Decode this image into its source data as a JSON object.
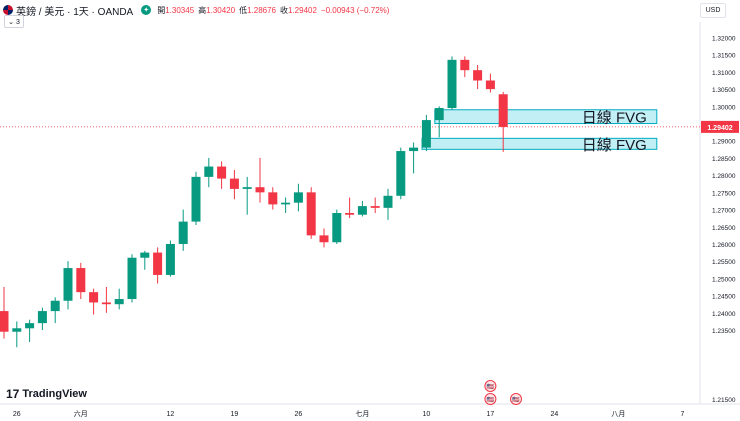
{
  "header": {
    "symbol": "英鎊 / 美元 · 1天 · OANDA",
    "status_glyph": "✦",
    "ohlc_text": [
      {
        "label": "開",
        "value": "1.30345"
      },
      {
        "label": "高",
        "value": "1.30420"
      },
      {
        "label": "低",
        "value": "1.28676"
      },
      {
        "label": "收",
        "value": "1.29402"
      },
      {
        "label": "",
        "value": "−0.00943 (−0.72%)"
      }
    ],
    "collapse_label": "⌄ 3",
    "currency": "USD"
  },
  "logo": {
    "text": "TradingView",
    "mark": "17"
  },
  "colors": {
    "up": "#089981",
    "down": "#f23645",
    "fvg_fill": "#b2ebf2",
    "fvg_border": "#00acc1",
    "price_line": "#f23645"
  },
  "chart_data": {
    "type": "candlestick",
    "instrument": "GBP/USD",
    "timeframe": "1D",
    "ylim": [
      1.2135,
      1.3245
    ],
    "y_ticks": [
      "1.32000",
      "1.31500",
      "1.31000",
      "1.30500",
      "1.30000",
      "1.29500",
      "1.29000",
      "1.28500",
      "1.28000",
      "1.27500",
      "1.27000",
      "1.26500",
      "1.26000",
      "1.25500",
      "1.25000",
      "1.24500",
      "1.24000",
      "1.23500",
      "1.21500"
    ],
    "x_ticks": [
      {
        "label": "26",
        "index": 1
      },
      {
        "label": "六月",
        "index": 6
      },
      {
        "label": "12",
        "index": 13
      },
      {
        "label": "19",
        "index": 18
      },
      {
        "label": "26",
        "index": 23
      },
      {
        "label": "七月",
        "index": 28
      },
      {
        "label": "10",
        "index": 33
      },
      {
        "label": "17",
        "index": 38
      },
      {
        "label": "24",
        "index": 43
      },
      {
        "label": "八月",
        "index": 48
      },
      {
        "label": "7",
        "index": 53
      }
    ],
    "candles": [
      {
        "o": 1.2405,
        "h": 1.2475,
        "l": 1.2325,
        "c": 1.2345
      },
      {
        "o": 1.2345,
        "h": 1.2375,
        "l": 1.23,
        "c": 1.2355
      },
      {
        "o": 1.2355,
        "h": 1.238,
        "l": 1.2315,
        "c": 1.237
      },
      {
        "o": 1.237,
        "h": 1.2415,
        "l": 1.235,
        "c": 1.2405
      },
      {
        "o": 1.2405,
        "h": 1.2445,
        "l": 1.237,
        "c": 1.2435
      },
      {
        "o": 1.2435,
        "h": 1.255,
        "l": 1.241,
        "c": 1.253
      },
      {
        "o": 1.253,
        "h": 1.2545,
        "l": 1.244,
        "c": 1.246
      },
      {
        "o": 1.246,
        "h": 1.247,
        "l": 1.2395,
        "c": 1.243
      },
      {
        "o": 1.243,
        "h": 1.2475,
        "l": 1.24,
        "c": 1.2425
      },
      {
        "o": 1.2425,
        "h": 1.247,
        "l": 1.241,
        "c": 1.244
      },
      {
        "o": 1.244,
        "h": 1.257,
        "l": 1.243,
        "c": 1.256
      },
      {
        "o": 1.256,
        "h": 1.258,
        "l": 1.2525,
        "c": 1.2575
      },
      {
        "o": 1.2575,
        "h": 1.259,
        "l": 1.2485,
        "c": 1.251
      },
      {
        "o": 1.251,
        "h": 1.261,
        "l": 1.2505,
        "c": 1.26
      },
      {
        "o": 1.26,
        "h": 1.27,
        "l": 1.258,
        "c": 1.2665
      },
      {
        "o": 1.2665,
        "h": 1.281,
        "l": 1.2655,
        "c": 1.2795
      },
      {
        "o": 1.2795,
        "h": 1.285,
        "l": 1.2765,
        "c": 1.2825
      },
      {
        "o": 1.2825,
        "h": 1.284,
        "l": 1.276,
        "c": 1.279
      },
      {
        "o": 1.279,
        "h": 1.2815,
        "l": 1.273,
        "c": 1.276
      },
      {
        "o": 1.276,
        "h": 1.2795,
        "l": 1.2685,
        "c": 1.2765
      },
      {
        "o": 1.2765,
        "h": 1.285,
        "l": 1.272,
        "c": 1.275
      },
      {
        "o": 1.275,
        "h": 1.2765,
        "l": 1.27,
        "c": 1.2715
      },
      {
        "o": 1.2715,
        "h": 1.2735,
        "l": 1.269,
        "c": 1.272
      },
      {
        "o": 1.272,
        "h": 1.2775,
        "l": 1.2695,
        "c": 1.275
      },
      {
        "o": 1.275,
        "h": 1.2765,
        "l": 1.2615,
        "c": 1.2625
      },
      {
        "o": 1.2625,
        "h": 1.2645,
        "l": 1.259,
        "c": 1.2605
      },
      {
        "o": 1.2605,
        "h": 1.27,
        "l": 1.26,
        "c": 1.269
      },
      {
        "o": 1.269,
        "h": 1.2735,
        "l": 1.2675,
        "c": 1.2685
      },
      {
        "o": 1.2685,
        "h": 1.2725,
        "l": 1.268,
        "c": 1.271
      },
      {
        "o": 1.271,
        "h": 1.2735,
        "l": 1.269,
        "c": 1.2705
      },
      {
        "o": 1.2705,
        "h": 1.276,
        "l": 1.267,
        "c": 1.274
      },
      {
        "o": 1.274,
        "h": 1.288,
        "l": 1.273,
        "c": 1.287
      },
      {
        "o": 1.287,
        "h": 1.2895,
        "l": 1.2805,
        "c": 1.288
      },
      {
        "o": 1.288,
        "h": 1.2975,
        "l": 1.287,
        "c": 1.296
      },
      {
        "o": 1.296,
        "h": 1.3,
        "l": 1.291,
        "c": 1.2995
      },
      {
        "o": 1.2995,
        "h": 1.3145,
        "l": 1.299,
        "c": 1.3135
      },
      {
        "o": 1.3135,
        "h": 1.3145,
        "l": 1.3085,
        "c": 1.3105
      },
      {
        "o": 1.3105,
        "h": 1.312,
        "l": 1.305,
        "c": 1.3075
      },
      {
        "o": 1.3075,
        "h": 1.3095,
        "l": 1.304,
        "c": 1.305
      },
      {
        "o": 1.3035,
        "h": 1.3042,
        "l": 1.28676,
        "c": 1.29402
      }
    ],
    "fvg_zones": [
      {
        "label": "日線 FVG",
        "from_index": 34,
        "to_index": 51,
        "top": 1.299,
        "bottom": 1.295
      },
      {
        "label": "日線 FVG",
        "from_index": 33,
        "to_index": 51,
        "top": 1.2907,
        "bottom": 1.2875
      }
    ],
    "last_price": "1.29402",
    "event_markers": [
      {
        "index": 38,
        "count": 2,
        "glyph": "🇺🇸"
      },
      {
        "index": 40,
        "count": 1,
        "glyph": "🇺🇸"
      }
    ]
  }
}
